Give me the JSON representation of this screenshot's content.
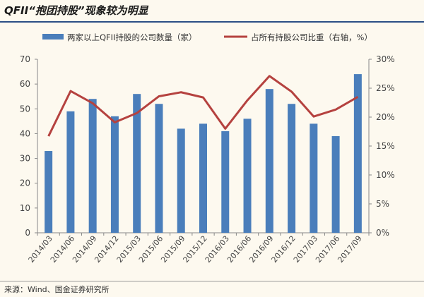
{
  "title": "QFII“抱团持股”现象较为明显",
  "source": "来源：Wind、国金证券研究所",
  "chart_data": {
    "type": "bar+line",
    "categories": [
      "2014/03",
      "2014/06",
      "2014/09",
      "2014/12",
      "2015/03",
      "2015/06",
      "2015/09",
      "2015/12",
      "2016/03",
      "2016/06",
      "2016/09",
      "2016/12",
      "2017/03",
      "2017/06",
      "2017/09"
    ],
    "series": [
      {
        "name": "两家以上QFII持股的公司数量（家）",
        "type": "bar",
        "axis": "left",
        "color": "#4a7ebb",
        "values": [
          33,
          49,
          54,
          47,
          56,
          52,
          42,
          44,
          41,
          46,
          58,
          52,
          44,
          39,
          64
        ]
      },
      {
        "name": "占所有持股公司比重（右轴，%）",
        "type": "line",
        "axis": "right",
        "color": "#b5423f",
        "values": [
          16.7,
          24.5,
          22.4,
          19.1,
          20.7,
          23.6,
          24.3,
          23.4,
          18.0,
          22.9,
          27.1,
          24.4,
          20.1,
          21.3,
          23.5
        ]
      }
    ],
    "yleft": {
      "lim": [
        0,
        70
      ],
      "ticks": [
        "0",
        "10",
        "20",
        "30",
        "40",
        "50",
        "60",
        "70"
      ]
    },
    "yright": {
      "lim": [
        0,
        30
      ],
      "ticks": [
        "0%",
        "5%",
        "10%",
        "15%",
        "20%",
        "25%",
        "30%"
      ]
    },
    "grid": false,
    "legend": "top"
  }
}
